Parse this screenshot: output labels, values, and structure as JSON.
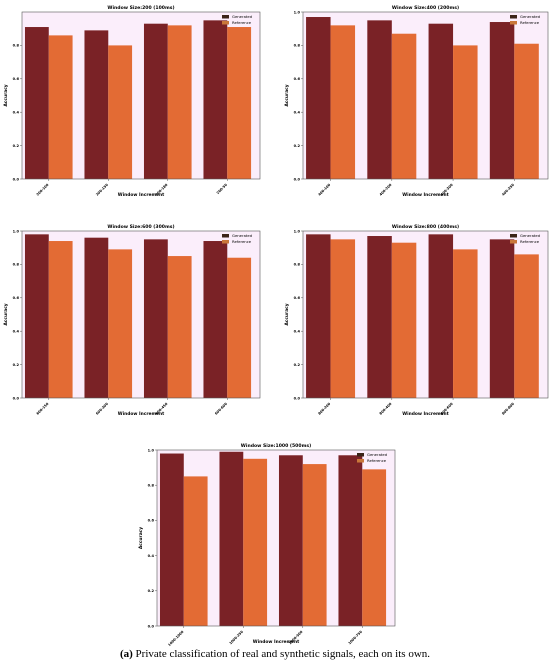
{
  "caption": {
    "label": "(a)",
    "text": "Private classification of real and synthetic signals, each on its own."
  },
  "colors": {
    "generated": "#7a2226",
    "reference": "#e36b34",
    "reference_alt": "#c9773a",
    "background_tint": "#fbeefb",
    "axis": "#555555"
  },
  "chart_data": [
    {
      "type": "bar",
      "title": "Window Size:200 (100ms)",
      "xlabel": "Window Increment",
      "ylabel": "Accuracy",
      "ylim": [
        0,
        1.0
      ],
      "yticks": [
        0.0,
        0.2,
        0.4,
        0.6,
        0.8
      ],
      "categories": [
        "200-100",
        "200-150",
        "200-180",
        "200-50"
      ],
      "legend_position": "top-right",
      "series": [
        {
          "name": "Generated",
          "values": [
            0.91,
            0.89,
            0.93,
            0.95
          ]
        },
        {
          "name": "Reference",
          "values": [
            0.86,
            0.8,
            0.92,
            0.91
          ]
        }
      ]
    },
    {
      "type": "bar",
      "title": "Window Size:400 (200ms)",
      "xlabel": "Window Increment",
      "ylabel": "Accuracy",
      "ylim": [
        0,
        1.0
      ],
      "yticks": [
        0.0,
        0.2,
        0.4,
        0.6,
        0.8,
        1.0
      ],
      "categories": [
        "400-100",
        "400-200",
        "400-300",
        "400-350"
      ],
      "legend_position": "top-right",
      "series": [
        {
          "name": "Generated",
          "values": [
            0.97,
            0.95,
            0.93,
            0.94
          ]
        },
        {
          "name": "Reference",
          "values": [
            0.92,
            0.87,
            0.8,
            0.81
          ]
        }
      ]
    },
    {
      "type": "bar",
      "title": "Window Size:600 (300ms)",
      "xlabel": "Window Increment",
      "ylabel": "Accuracy",
      "ylim": [
        0,
        1.0
      ],
      "yticks": [
        0.0,
        0.2,
        0.4,
        0.6,
        0.8,
        1.0
      ],
      "categories": [
        "600-150",
        "600-300",
        "600-450",
        "600-600"
      ],
      "legend_position": "top-right",
      "series": [
        {
          "name": "Generated",
          "values": [
            0.98,
            0.96,
            0.95,
            0.94
          ]
        },
        {
          "name": "Reference",
          "values": [
            0.94,
            0.89,
            0.85,
            0.84
          ]
        }
      ]
    },
    {
      "type": "bar",
      "title": "Window Size:800 (400ms)",
      "xlabel": "Window Increment",
      "ylabel": "Accuracy",
      "ylim": [
        0,
        1.0
      ],
      "yticks": [
        0.0,
        0.2,
        0.4,
        0.6,
        0.8,
        1.0
      ],
      "categories": [
        "800-200",
        "800-400",
        "800-600",
        "800-800"
      ],
      "legend_position": "top-right",
      "series": [
        {
          "name": "Generated",
          "values": [
            0.98,
            0.97,
            0.98,
            0.95
          ]
        },
        {
          "name": "Reference",
          "values": [
            0.95,
            0.93,
            0.89,
            0.86
          ]
        }
      ]
    },
    {
      "type": "bar",
      "title": "Window Size:1000 (500ms)",
      "xlabel": "Window Increment",
      "ylabel": "Accuracy",
      "ylim": [
        0,
        1.0
      ],
      "yticks": [
        0.0,
        0.2,
        0.4,
        0.6,
        0.8,
        1.0
      ],
      "categories": [
        "1000-1000",
        "1000-250",
        "1000-500",
        "1000-750"
      ],
      "legend_position": "top-right",
      "series": [
        {
          "name": "Generated",
          "values": [
            0.98,
            0.99,
            0.97,
            0.97
          ]
        },
        {
          "name": "Reference",
          "values": [
            0.85,
            0.95,
            0.92,
            0.89
          ]
        }
      ]
    }
  ]
}
